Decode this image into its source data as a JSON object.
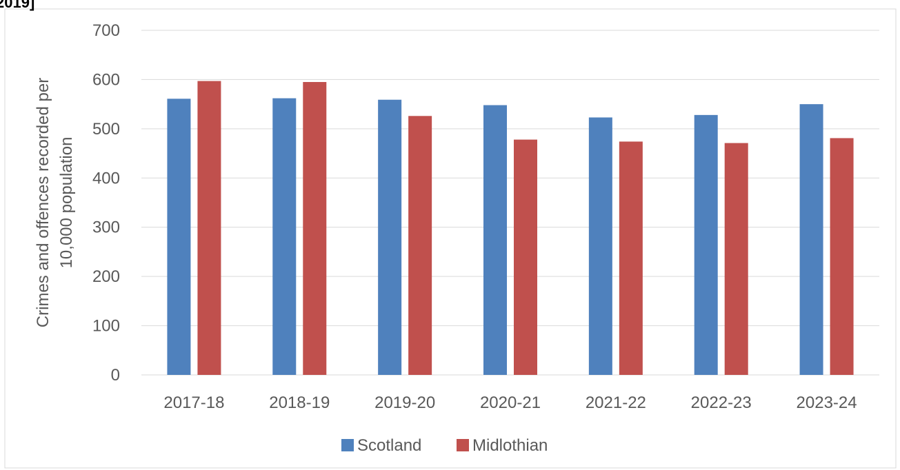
{
  "header_fragment": "2019]",
  "chart_data": {
    "type": "bar",
    "title": "",
    "xlabel": "",
    "ylabel_lines": [
      "Crimes and offences recorded per",
      "10,000 population"
    ],
    "ylim": [
      0,
      700
    ],
    "yticks": [
      0,
      100,
      200,
      300,
      400,
      500,
      600,
      700
    ],
    "grid": true,
    "legend_position": "bottom",
    "categories": [
      "2017-18",
      "2018-19",
      "2019-20",
      "2020-21",
      "2021-22",
      "2022-23",
      "2023-24"
    ],
    "series": [
      {
        "name": "Scotland",
        "color": "#4f81bd",
        "values": [
          561,
          562,
          559,
          548,
          523,
          528,
          550
        ]
      },
      {
        "name": "Midlothian",
        "color": "#c0504d",
        "values": [
          597,
          595,
          526,
          478,
          474,
          471,
          481
        ]
      }
    ]
  }
}
